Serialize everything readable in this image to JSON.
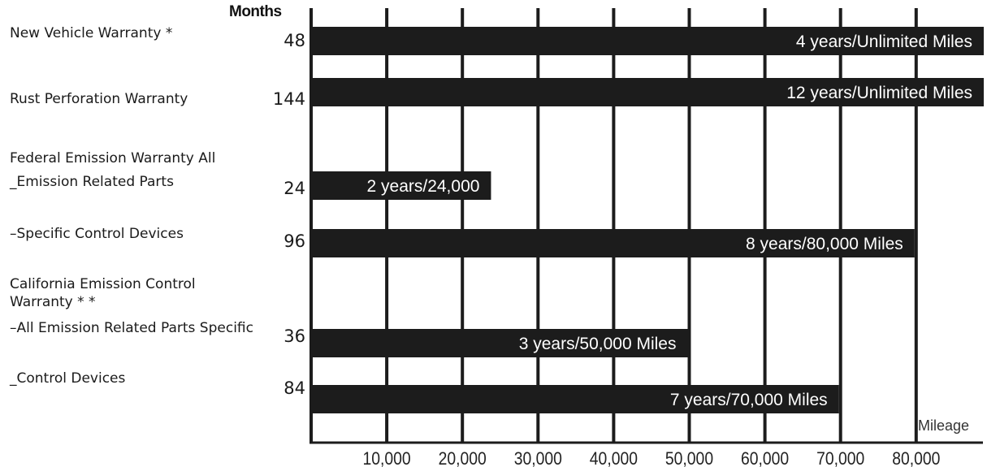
{
  "chart_data": {
    "type": "bar",
    "orientation": "horizontal",
    "y_axis_title": "Months",
    "x_axis_title": "Mileage",
    "x_ticks": [
      "10,000",
      "20,000",
      "30,000",
      "40,000",
      "50,000",
      "60,000",
      "70,000",
      "80,000"
    ],
    "x_range": [
      0,
      89000
    ],
    "grid": "vertical lines at each 10,000",
    "rows": [
      {
        "label": "New Vehicle Warranty *",
        "months": "48",
        "bar_label": "4 years/Unlimited Miles",
        "miles": 89000
      },
      {
        "label": "Rust Perforation Warranty",
        "months": "144",
        "bar_label": "12 years/Unlimited Miles",
        "miles": 89000
      },
      {
        "label": "Federal Emission Warranty All",
        "months": "",
        "bar_label": "",
        "miles": null
      },
      {
        "label": "_Emission Related Parts",
        "months": "24",
        "bar_label": "2 years/24,000",
        "miles": 24000
      },
      {
        "label": "–Specific Control Devices",
        "months": "96",
        "bar_label": "8 years/80,000 Miles",
        "miles": 80000
      },
      {
        "label": "California Emission Control Warranty * *",
        "months": "",
        "bar_label": "",
        "miles": null
      },
      {
        "label": "–All Emission Related Parts Specific",
        "months": "36",
        "bar_label": "3 years/50,000 Miles",
        "miles": 50000
      },
      {
        "label": "_Control Devices",
        "months": "84",
        "bar_label": "7 years/70,000 Miles",
        "miles": 70000
      }
    ]
  },
  "colors": {
    "bar": "#1c1c1c",
    "grid": "#1c1c1c",
    "bar_text": "#ffffff"
  }
}
